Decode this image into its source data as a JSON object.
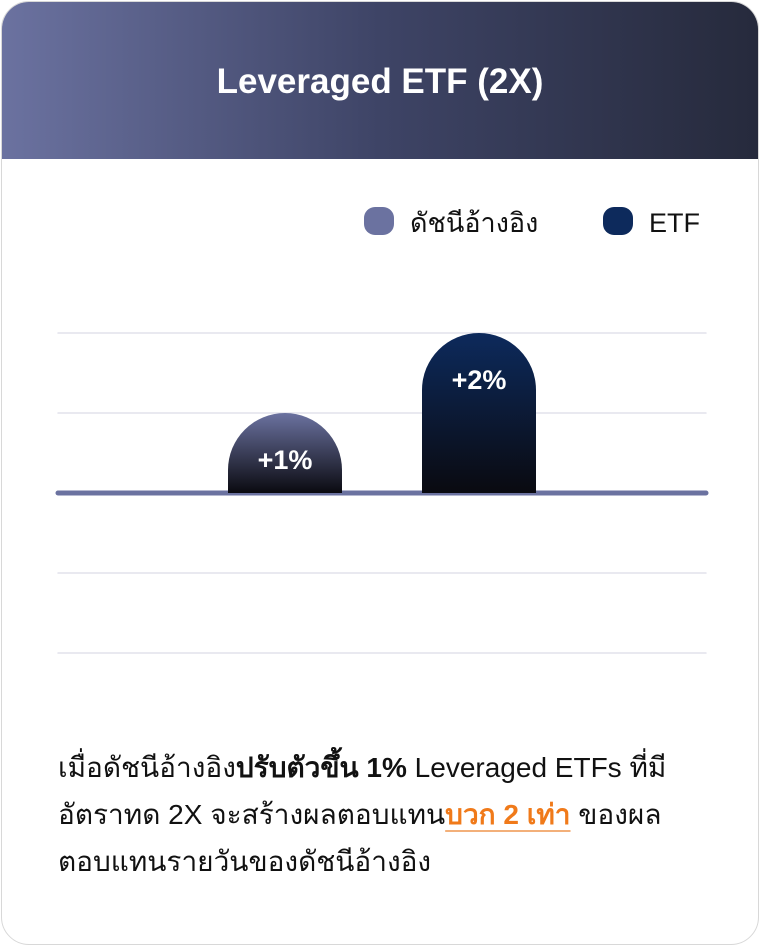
{
  "chart_data": {
    "type": "bar",
    "title": "Leveraged ETF (2X)",
    "categories": [
      null
    ],
    "series": [
      {
        "name": "ดัชนีอ้างอิง",
        "color": "#6b72a0",
        "values": [
          1
        ],
        "value_labels": [
          "+1%"
        ]
      },
      {
        "name": "ETF",
        "color": "#0d2a5c",
        "values": [
          2
        ],
        "value_labels": [
          "+2%"
        ]
      }
    ],
    "ylim": [
      -2,
      2
    ],
    "yticks": [
      -2,
      -1,
      0,
      1,
      2
    ],
    "grid": true,
    "legend": "top-right"
  },
  "description": [
    "เมื่อดัชนีอ้างอิง",
    "ปรับตัวขึ้น 1%",
    " Leveraged ETFs ที่มีอัตราทด 2X จะสร้างผลตอบแทน",
    "บวก 2 เท่า",
    " ของผลตอบแทนรายวันของดัชนีอ้างอิง"
  ]
}
